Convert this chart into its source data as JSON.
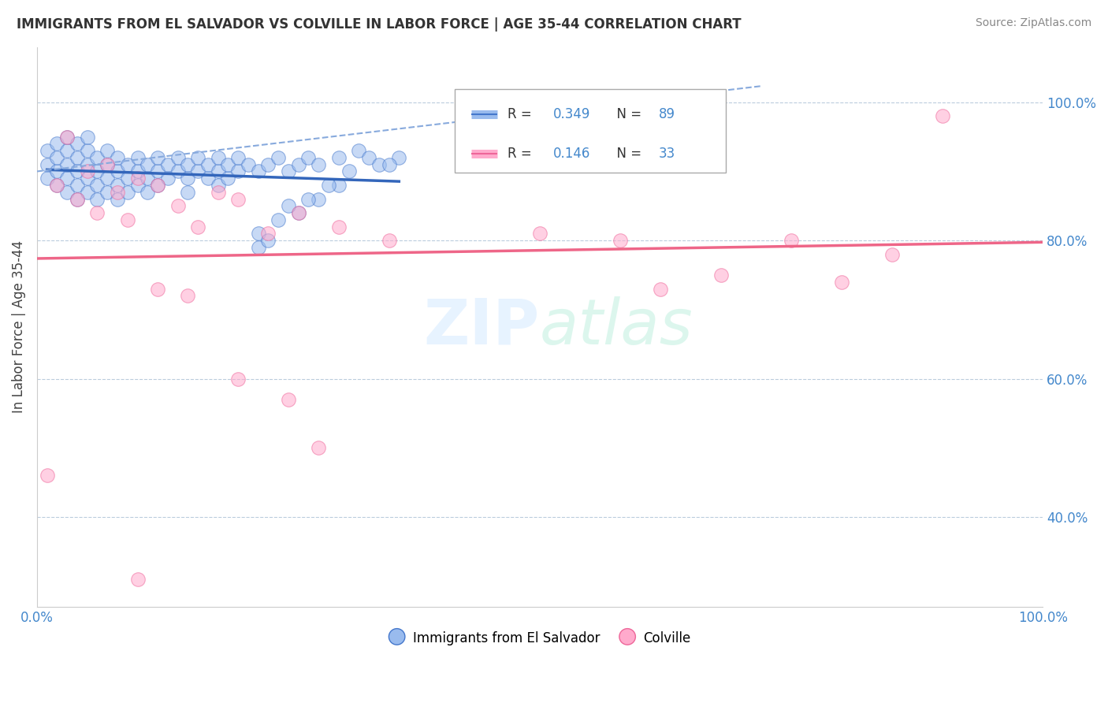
{
  "title": "IMMIGRANTS FROM EL SALVADOR VS COLVILLE IN LABOR FORCE | AGE 35-44 CORRELATION CHART",
  "source": "Source: ZipAtlas.com",
  "ylabel": "In Labor Force | Age 35-44",
  "xlim": [
    0.0,
    1.0
  ],
  "ylim": [
    0.27,
    1.08
  ],
  "yticks": [
    0.4,
    0.6,
    0.8,
    1.0
  ],
  "ytick_labels": [
    "40.0%",
    "60.0%",
    "80.0%",
    "100.0%"
  ],
  "xticks": [
    0.0,
    0.2,
    0.4,
    0.6,
    0.8,
    1.0
  ],
  "xtick_labels": [
    "0.0%",
    "",
    "",
    "",
    "",
    "100.0%"
  ],
  "blue_R": 0.349,
  "blue_N": 89,
  "pink_R": 0.146,
  "pink_N": 33,
  "blue_color": "#99BBEE",
  "pink_color": "#FFAACC",
  "blue_edge_color": "#4477CC",
  "pink_edge_color": "#EE6699",
  "blue_line_color": "#3366BB",
  "pink_line_color": "#EE6688",
  "dashed_line_color": "#88AADD",
  "legend_blue_label": "Immigrants from El Salvador",
  "legend_pink_label": "Colville",
  "watermark": "ZIPatlas",
  "blue_scatter_x": [
    0.01,
    0.01,
    0.01,
    0.02,
    0.02,
    0.02,
    0.02,
    0.03,
    0.03,
    0.03,
    0.03,
    0.03,
    0.04,
    0.04,
    0.04,
    0.04,
    0.04,
    0.05,
    0.05,
    0.05,
    0.05,
    0.05,
    0.06,
    0.06,
    0.06,
    0.06,
    0.07,
    0.07,
    0.07,
    0.07,
    0.08,
    0.08,
    0.08,
    0.08,
    0.09,
    0.09,
    0.09,
    0.1,
    0.1,
    0.1,
    0.11,
    0.11,
    0.11,
    0.12,
    0.12,
    0.12,
    0.13,
    0.13,
    0.14,
    0.14,
    0.15,
    0.15,
    0.15,
    0.16,
    0.16,
    0.17,
    0.17,
    0.18,
    0.18,
    0.18,
    0.19,
    0.19,
    0.2,
    0.2,
    0.21,
    0.22,
    0.23,
    0.24,
    0.25,
    0.26,
    0.27,
    0.28,
    0.3,
    0.32,
    0.33,
    0.34,
    0.36,
    0.26,
    0.28,
    0.3,
    0.22,
    0.24,
    0.25,
    0.27,
    0.29,
    0.31,
    0.35,
    0.22,
    0.23
  ],
  "blue_scatter_y": [
    0.91,
    0.93,
    0.89,
    0.9,
    0.92,
    0.88,
    0.94,
    0.89,
    0.91,
    0.93,
    0.87,
    0.95,
    0.88,
    0.9,
    0.92,
    0.86,
    0.94,
    0.89,
    0.91,
    0.93,
    0.87,
    0.95,
    0.88,
    0.9,
    0.92,
    0.86,
    0.89,
    0.91,
    0.93,
    0.87,
    0.9,
    0.92,
    0.86,
    0.88,
    0.89,
    0.91,
    0.87,
    0.9,
    0.92,
    0.88,
    0.89,
    0.91,
    0.87,
    0.9,
    0.92,
    0.88,
    0.89,
    0.91,
    0.9,
    0.92,
    0.89,
    0.91,
    0.87,
    0.9,
    0.92,
    0.89,
    0.91,
    0.9,
    0.92,
    0.88,
    0.89,
    0.91,
    0.9,
    0.92,
    0.91,
    0.9,
    0.91,
    0.92,
    0.9,
    0.91,
    0.92,
    0.91,
    0.92,
    0.93,
    0.92,
    0.91,
    0.92,
    0.84,
    0.86,
    0.88,
    0.81,
    0.83,
    0.85,
    0.86,
    0.88,
    0.9,
    0.91,
    0.79,
    0.8
  ],
  "pink_scatter_x": [
    0.01,
    0.02,
    0.03,
    0.04,
    0.05,
    0.06,
    0.07,
    0.08,
    0.09,
    0.1,
    0.12,
    0.14,
    0.16,
    0.18,
    0.2,
    0.23,
    0.26,
    0.3,
    0.35,
    0.5,
    0.58,
    0.62,
    0.68,
    0.75,
    0.8,
    0.85,
    0.9,
    0.12,
    0.15,
    0.2,
    0.25,
    0.28,
    0.1
  ],
  "pink_scatter_y": [
    0.46,
    0.88,
    0.95,
    0.86,
    0.9,
    0.84,
    0.91,
    0.87,
    0.83,
    0.89,
    0.88,
    0.85,
    0.82,
    0.87,
    0.86,
    0.81,
    0.84,
    0.82,
    0.8,
    0.81,
    0.8,
    0.73,
    0.75,
    0.8,
    0.74,
    0.78,
    0.98,
    0.73,
    0.72,
    0.6,
    0.57,
    0.5,
    0.31
  ]
}
